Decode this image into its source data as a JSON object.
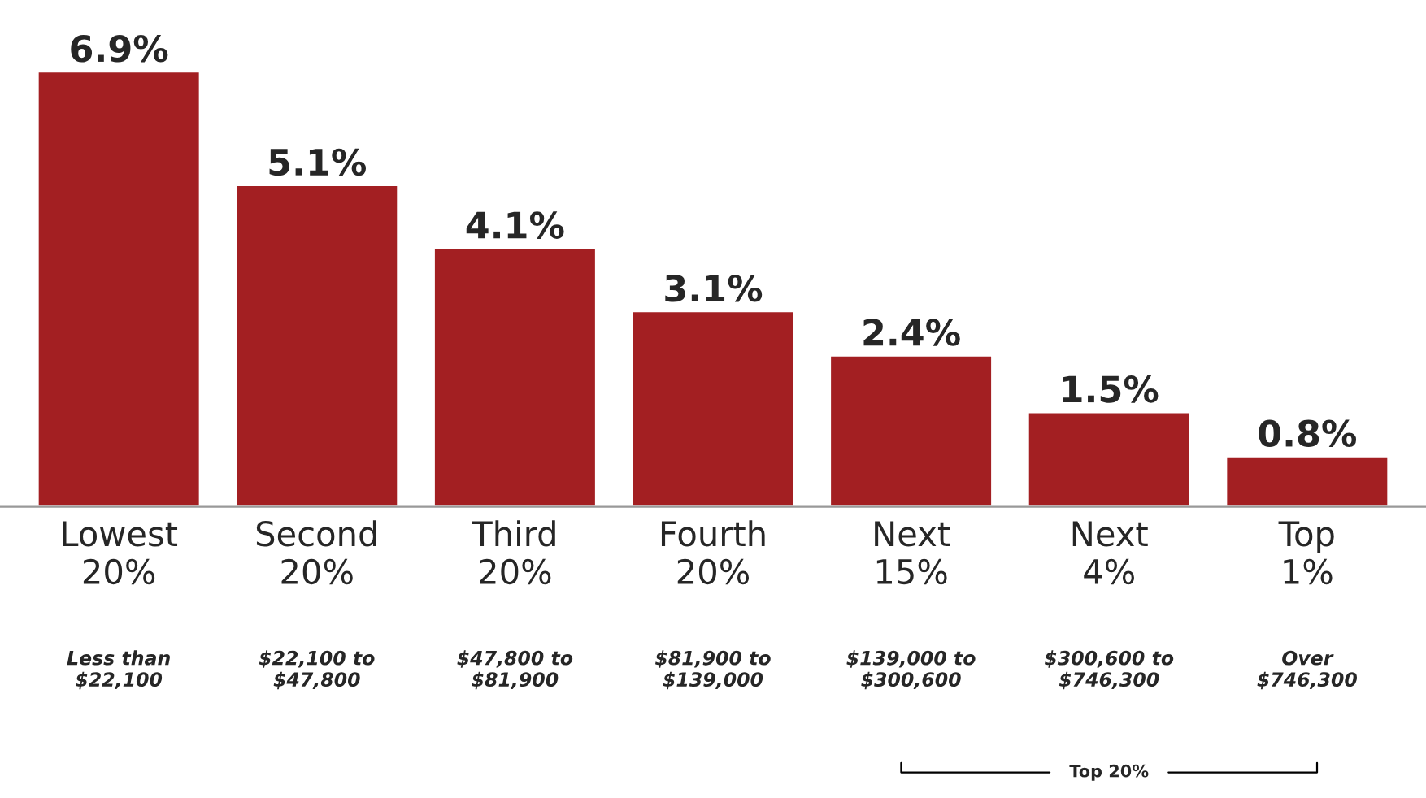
{
  "chart_data": {
    "type": "bar",
    "categories": [
      "Lowest\n20%",
      "Second\n20%",
      "Third\n20%",
      "Fourth\n20%",
      "Next\n15%",
      "Next\n4%",
      "Top\n1%"
    ],
    "values": [
      6.9,
      5.1,
      4.1,
      3.1,
      2.4,
      1.5,
      0.8
    ],
    "value_labels": [
      "6.9%",
      "5.1%",
      "4.1%",
      "3.1%",
      "2.4%",
      "1.5%",
      "0.8%"
    ],
    "color": "#a31f22",
    "annotations": [
      "Less than\n$22,100",
      "$22,100 to\n$47,800",
      "$47,800 to\n$81,900",
      "$81,900 to\n$139,000",
      "$139,000 to\n$300,600",
      "$300,600 to\n$746,300",
      "Over\n$746,300",
      "Top 20%"
    ],
    "grid": false,
    "legend": false
  }
}
